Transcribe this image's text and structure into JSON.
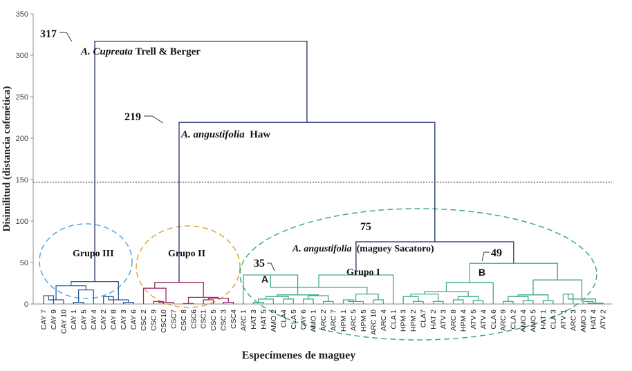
{
  "chart_data": {
    "type": "dendrogram",
    "xlabel": "Especímenes de maguey",
    "ylabel": "Disimilitud (distancia cofenética)",
    "ylim": [
      0,
      350
    ],
    "yticks": [
      0,
      50,
      100,
      150,
      200,
      250,
      300,
      350
    ],
    "cut_line": 147,
    "leaves": [
      "CAY 7",
      "CAY 9",
      "CAY 10",
      "CAY 1",
      "CAY 5",
      "CAY 4",
      "CAY 2",
      "CAY 8",
      "CAY 3",
      "CAY 6",
      "CSC 2",
      "CSC 9",
      "CSC10",
      "CSC7",
      "CSC 8",
      "CSC6",
      "CSC1",
      "CSC 5",
      "CSC 3",
      "CSC4",
      "ARC 1",
      "HAT 3",
      "HAT 5",
      "AMO 2",
      "CLA4",
      "CLA 5",
      "CAY 6",
      "AMO 1",
      "ARC 2",
      "ARC 7",
      "HPM 1",
      "ARC 5",
      "HPM 5",
      "ARC 10",
      "ARC 4",
      "CLA 1",
      "HPM 3",
      "HPM 2",
      "CLA7",
      "HAT 2",
      "ATV 3",
      "ARC 8",
      "HPM 4",
      "ATV 5",
      "ATV 4",
      "CLA 6",
      "ARC 9",
      "CLA 2",
      "AMO 4",
      "AMO 5",
      "HAT 1",
      "CLA 3",
      "ATV 1",
      "ARC 3",
      "AMO 3",
      "HAT 4",
      "ATV 2"
    ],
    "colors": {
      "root": "#1f2d6b",
      "group3": "#2e5a96",
      "group2": "#9b2c6a",
      "group1": "#3daa8a",
      "ellipse3": "#4fa9d6",
      "ellipse2": "#e0a33a",
      "ellipse1": "#3aa88a",
      "cut": "#000000"
    },
    "annotations": {
      "n317": "317",
      "n219": "219",
      "n75": "75",
      "n49": "49",
      "n35": "35",
      "cupreata_italic": "A. Cupreata",
      "cupreata_rest": " Trell & Berger",
      "angustifolia_italic": "A. angustifolia",
      "angustifolia_rest": "  Haw",
      "sacatoro_italic": "A. angustifolia",
      "sacatoro_rest": "  (maguey Sacatoro)",
      "grupo3": "Grupo III",
      "grupo2": "Grupo II",
      "grupo1": "Grupo I",
      "label_a": "A",
      "label_b": "B"
    }
  }
}
